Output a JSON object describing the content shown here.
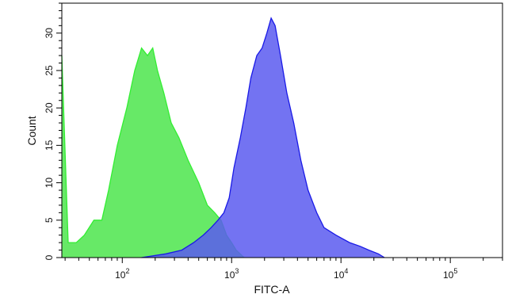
{
  "chart_data": {
    "type": "area",
    "title": "",
    "xlabel": "FITC-A",
    "ylabel": "Count",
    "x_scale": "log",
    "xlim": [
      28,
      300000
    ],
    "ylim": [
      0,
      34
    ],
    "grid": false,
    "legend": "none",
    "x_ticks": [
      {
        "value": 100,
        "base": "10",
        "exp": "2"
      },
      {
        "value": 1000,
        "base": "10",
        "exp": "3"
      },
      {
        "value": 10000,
        "base": "10",
        "exp": "4"
      },
      {
        "value": 100000,
        "base": "10",
        "exp": "5"
      }
    ],
    "y_ticks": [
      0,
      5,
      10,
      15,
      20,
      25,
      30
    ],
    "series": [
      {
        "color": "#33ee33",
        "fill": "#5fe85f",
        "x": [
          28,
          32,
          38,
          45,
          55,
          65,
          75,
          90,
          110,
          130,
          150,
          170,
          190,
          210,
          240,
          280,
          330,
          400,
          500,
          600,
          700,
          800,
          900,
          1000,
          1100,
          1300
        ],
        "y": [
          27,
          2,
          2,
          3,
          5,
          5,
          9,
          15,
          20,
          25,
          28,
          27,
          28,
          25,
          22,
          18,
          16,
          13,
          10,
          7,
          6,
          5,
          3,
          2,
          1,
          0
        ]
      },
      {
        "color": "#1a1ae6",
        "fill": "#5a5af0",
        "x": [
          150,
          250,
          350,
          450,
          550,
          650,
          750,
          850,
          950,
          1050,
          1200,
          1350,
          1500,
          1700,
          1900,
          2100,
          2300,
          2500,
          2800,
          3200,
          3700,
          4300,
          5000,
          6000,
          7000,
          9000,
          12000,
          15000,
          18000,
          22000,
          25000
        ],
        "y": [
          0,
          0.5,
          1,
          2,
          3,
          4,
          5,
          6,
          8,
          12,
          16,
          20,
          24,
          27,
          28,
          30,
          32,
          31,
          27,
          22,
          18,
          13,
          9,
          6,
          4,
          3,
          2,
          1.5,
          1,
          0.5,
          0
        ]
      }
    ]
  }
}
